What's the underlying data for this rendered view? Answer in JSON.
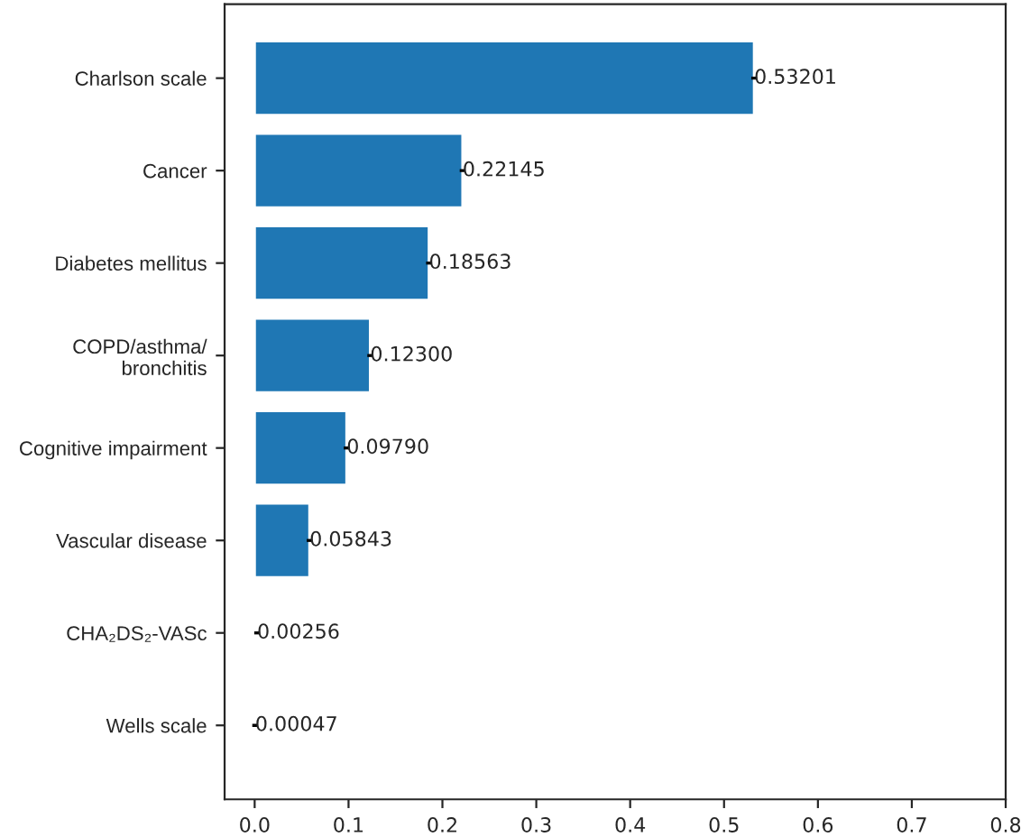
{
  "chart_data": {
    "type": "bar",
    "orientation": "horizontal",
    "categories": [
      "Charlson scale",
      "Cancer",
      "Diabetes mellitus",
      "COPD/asthma/\nbronchitis",
      "Cognitive impairment",
      "Vascular disease",
      "CHA₂DS₂-VASc",
      "Wells scale"
    ],
    "values": [
      0.53201,
      0.22145,
      0.18563,
      0.123,
      0.0979,
      0.05843,
      0.00256,
      0.00047
    ],
    "errors": [
      0.003,
      0.003,
      0.003,
      0.003,
      0.003,
      0.003,
      0.003,
      0.003
    ],
    "value_labels": [
      "0.53201",
      "0.22145",
      "0.18563",
      "0.12300",
      "0.09790",
      "0.05843",
      "0.00256",
      "0.00047"
    ],
    "color": "#1f77b4",
    "xlim": [
      -0.032,
      0.8
    ],
    "xticks": [
      {
        "value": 0.0,
        "label": "0.0"
      },
      0.1,
      0.2,
      0.3,
      0.4,
      0.5,
      0.6,
      0.7,
      0.8
    ],
    "grid": false
  }
}
